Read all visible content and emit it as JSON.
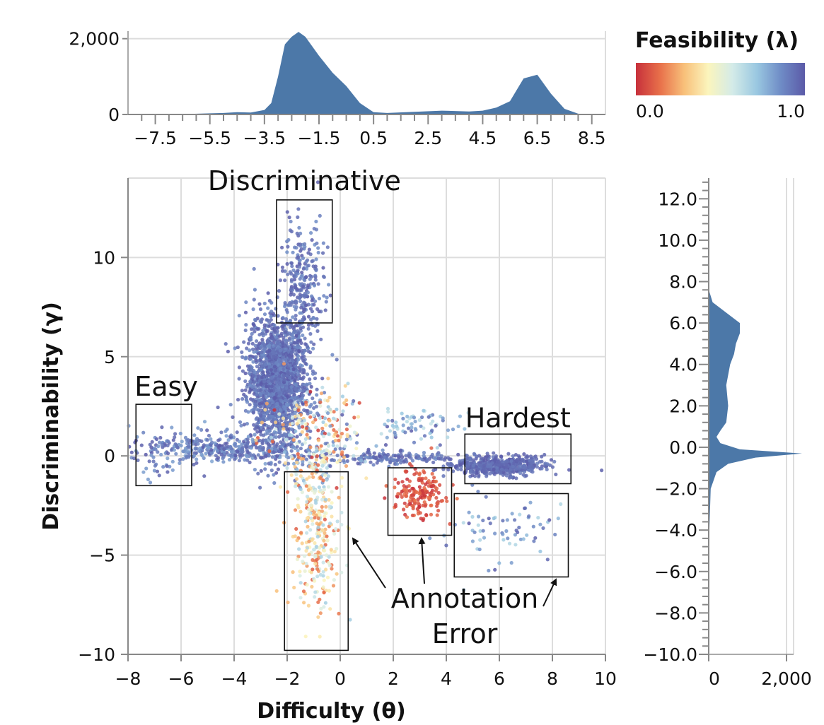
{
  "chart_data": [
    {
      "type": "area",
      "role": "top-marginal-density",
      "x": [
        -7.5,
        -6.5,
        -5.5,
        -5.0,
        -4.5,
        -4.0,
        -3.5,
        -3.25,
        -3.0,
        -2.75,
        -2.5,
        -2.25,
        -2.0,
        -1.5,
        -1.0,
        -0.5,
        0.0,
        0.5,
        1.0,
        2.0,
        3.0,
        4.0,
        4.5,
        5.0,
        5.5,
        6.0,
        6.5,
        7.0,
        7.5,
        8.0,
        8.5
      ],
      "y": [
        0,
        10,
        30,
        40,
        60,
        50,
        120,
        300,
        1000,
        1850,
        2050,
        2180,
        2050,
        1550,
        1100,
        750,
        300,
        60,
        40,
        70,
        100,
        80,
        100,
        180,
        350,
        950,
        1050,
        550,
        150,
        20,
        0
      ],
      "xticks": [
        "−7.5",
        "−5.5",
        "−3.5",
        "−1.5",
        "0.5",
        "2.5",
        "4.5",
        "6.5",
        "8.5"
      ],
      "xtick_values": [
        -7.5,
        -5.5,
        -3.5,
        -1.5,
        0.5,
        2.5,
        4.5,
        6.5,
        8.5
      ],
      "xlim": [
        -8.5,
        9.0
      ],
      "yticks": [
        "0",
        "2,000"
      ],
      "ytick_values": [
        0,
        2000
      ],
      "ylim": [
        0,
        2200
      ],
      "grid": true,
      "color": "#4c78a8"
    },
    {
      "type": "area",
      "role": "right-marginal-density",
      "y": [
        -10.0,
        -5.0,
        -2.0,
        -1.2,
        -0.8,
        -0.5,
        -0.3,
        -0.1,
        0.2,
        0.5,
        0.8,
        1.2,
        2.0,
        3.0,
        4.0,
        4.5,
        5.0,
        5.5,
        6.0,
        6.5,
        7.0,
        7.5,
        8.0,
        12.0
      ],
      "x": [
        0,
        0,
        50,
        200,
        500,
        1200,
        2400,
        800,
        300,
        200,
        300,
        450,
        500,
        450,
        550,
        650,
        700,
        800,
        800,
        450,
        100,
        20,
        0,
        0
      ],
      "yticks": [
        "12.0",
        "10.0",
        "8.0",
        "6.0",
        "4.0",
        "2.0",
        "0.0",
        "−2.0",
        "−4.0",
        "−6.0",
        "−8.0",
        "−10.0"
      ],
      "ytick_values": [
        12,
        10,
        8,
        6,
        4,
        2,
        0,
        -2,
        -4,
        -6,
        -8,
        -10
      ],
      "ylim": [
        -10.0,
        13.0
      ],
      "xticks": [
        "0",
        "2,000"
      ],
      "xtick_values": [
        0,
        2000
      ],
      "xlim": [
        0,
        4000
      ],
      "grid": true,
      "color": "#4c78a8"
    },
    {
      "type": "scatter",
      "role": "main",
      "xlabel": "Difficulty (θ)",
      "ylabel": "Discriminability (γ)",
      "xlim": [
        -8.0,
        10.0
      ],
      "ylim": [
        -10.0,
        14.0
      ],
      "xticks": [
        "−8",
        "−6",
        "−4",
        "−2",
        "0",
        "2",
        "4",
        "6",
        "8",
        "10"
      ],
      "xtick_values": [
        -8,
        -6,
        -4,
        -2,
        0,
        2,
        4,
        6,
        8,
        10
      ],
      "yticks": [
        "10",
        "5",
        "0",
        "−5",
        "−10"
      ],
      "ytick_values": [
        10,
        5,
        0,
        -5,
        -10
      ],
      "grid": true,
      "color_field": "Feasibility (λ)",
      "clusters": [
        {
          "name": "main-mass",
          "x_mean": -2.4,
          "x_sd": 0.55,
          "y_mean": 3.8,
          "y_sd": 1.6,
          "n": 1800,
          "lambda": [
            0.85,
            1.0
          ]
        },
        {
          "name": "discriminative-tail",
          "x_mean": -1.4,
          "x_sd": 0.4,
          "y_mean": 8.5,
          "y_sd": 1.6,
          "n": 260,
          "lambda": [
            0.85,
            1.0
          ]
        },
        {
          "name": "horizontal-band-left",
          "x_mean": -4.2,
          "x_sd": 1.6,
          "y_mean": 0.4,
          "y_sd": 0.35,
          "n": 380,
          "lambda": [
            0.8,
            1.0
          ]
        },
        {
          "name": "horizontal-band-right",
          "x_mean": 2.0,
          "x_sd": 1.3,
          "y_mean": -0.1,
          "y_sd": 0.15,
          "n": 160,
          "lambda": [
            0.85,
            1.0
          ]
        },
        {
          "name": "hardest-band",
          "x_mean": 6.0,
          "x_sd": 0.9,
          "y_mean": -0.5,
          "y_sd": 0.25,
          "n": 500,
          "lambda": [
            0.9,
            1.0
          ]
        },
        {
          "name": "middle-bumps",
          "x_mean": 2.8,
          "x_sd": 0.8,
          "y_mean": 1.5,
          "y_sd": 0.5,
          "n": 70,
          "lambda": [
            0.6,
            1.0
          ]
        },
        {
          "name": "mid-scatter",
          "x_mean": -1.0,
          "x_sd": 0.9,
          "y_mean": 1.0,
          "y_sd": 1.2,
          "n": 220,
          "lambda": [
            0.0,
            1.0
          ]
        },
        {
          "name": "annotation-error-left",
          "x_mean": -0.9,
          "x_sd": 0.45,
          "y_mean": -3.5,
          "y_sd": 2.2,
          "n": 320,
          "lambda": [
            0.1,
            0.7
          ]
        },
        {
          "name": "annotation-error-mid",
          "x_mean": 3.0,
          "x_sd": 0.5,
          "y_mean": -1.9,
          "y_sd": 0.6,
          "n": 170,
          "lambda": [
            0.0,
            0.15
          ]
        },
        {
          "name": "annotation-error-right",
          "x_mean": 6.0,
          "x_sd": 1.2,
          "y_mean": -3.7,
          "y_sd": 0.9,
          "n": 70,
          "lambda": [
            0.65,
            1.0
          ]
        },
        {
          "name": "easy-points",
          "x_mean": -6.8,
          "x_sd": 0.7,
          "y_mean": 0.0,
          "y_sd": 0.6,
          "n": 40,
          "lambda": [
            0.8,
            1.0
          ]
        }
      ],
      "regions": [
        {
          "label": "Easy",
          "x": [
            -7.7,
            -5.6
          ],
          "y": [
            -1.5,
            2.6
          ]
        },
        {
          "label": "Discriminative",
          "x": [
            -2.4,
            -0.3
          ],
          "y": [
            6.7,
            12.9
          ]
        },
        {
          "label": "Hardest",
          "x": [
            4.7,
            8.7
          ],
          "y": [
            -1.4,
            1.1
          ]
        },
        {
          "label": "",
          "x": [
            -2.1,
            0.3
          ],
          "y": [
            -9.8,
            -0.8
          ]
        },
        {
          "label": "",
          "x": [
            1.8,
            4.2
          ],
          "y": [
            -4.0,
            -0.6
          ]
        },
        {
          "label": "",
          "x": [
            4.3,
            8.6
          ],
          "y": [
            -6.1,
            -1.9
          ]
        }
      ],
      "annotation": {
        "line1": "Annotation",
        "line2": "Error"
      }
    }
  ],
  "legend": {
    "title": "Feasibility (λ)",
    "min_label": "0.0",
    "max_label": "1.0",
    "colors": [
      "#c7303b",
      "#e8704a",
      "#f8c07a",
      "#fbf5bd",
      "#d4ebe8",
      "#9ac8e1",
      "#6f8cc6",
      "#5b5aa8"
    ]
  }
}
